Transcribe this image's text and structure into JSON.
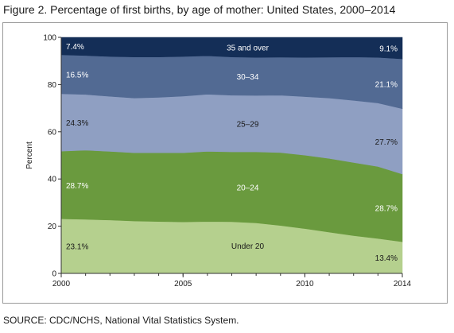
{
  "figure": {
    "title": "Figure 2. Percentage of first births, by age of mother: United States, 2000–2014",
    "source": "SOURCE: CDC/NCHS, National Vital Statistics System."
  },
  "chart_data": {
    "type": "area",
    "stacked": true,
    "ylabel": "Percent",
    "xlabel": "",
    "xlim": [
      2000,
      2014
    ],
    "ylim": [
      0,
      100
    ],
    "x_ticks": [
      "2000",
      "2005",
      "2010",
      "2014"
    ],
    "y_ticks": [
      "0",
      "20",
      "40",
      "60",
      "80",
      "100"
    ],
    "grid": false,
    "x": [
      2000,
      2001,
      2002,
      2003,
      2004,
      2005,
      2006,
      2007,
      2008,
      2009,
      2010,
      2011,
      2012,
      2013,
      2014
    ],
    "series": [
      {
        "name": "Under 20",
        "color": "#b5d08e",
        "values": [
          23.1,
          22.9,
          22.6,
          22.2,
          22.0,
          21.8,
          22.0,
          21.9,
          21.4,
          20.3,
          19.0,
          17.5,
          16.0,
          14.8,
          13.4
        ],
        "start_label": "23.1%",
        "end_label": "13.4%"
      },
      {
        "name": "20–24",
        "color": "#6a9a3e",
        "values": [
          28.7,
          29.3,
          29.1,
          28.9,
          29.1,
          29.3,
          29.7,
          29.6,
          30.1,
          30.9,
          31.1,
          31.2,
          31.0,
          30.5,
          28.7
        ],
        "start_label": "28.7%",
        "end_label": "28.7%"
      },
      {
        "name": "25–29",
        "color": "#8f9fc2",
        "values": [
          24.3,
          23.6,
          23.3,
          23.2,
          23.5,
          24.0,
          24.2,
          24.0,
          23.9,
          24.3,
          24.8,
          25.6,
          26.3,
          26.9,
          27.7
        ],
        "start_label": "24.3%",
        "end_label": "27.7%"
      },
      {
        "name": "30–34",
        "color": "#526a93",
        "values": [
          16.5,
          16.5,
          16.9,
          17.4,
          17.1,
          16.8,
          16.3,
          16.2,
          16.1,
          16.1,
          16.6,
          17.3,
          18.4,
          19.3,
          21.1
        ],
        "start_label": "16.5%",
        "end_label": "21.1%"
      },
      {
        "name": "35 and over",
        "color": "#142e57",
        "values": [
          7.4,
          7.7,
          8.1,
          8.3,
          8.3,
          8.1,
          7.8,
          8.3,
          8.5,
          8.4,
          8.5,
          8.4,
          8.3,
          8.5,
          9.1
        ],
        "start_label": "7.4%",
        "end_label": "9.1%"
      }
    ]
  }
}
